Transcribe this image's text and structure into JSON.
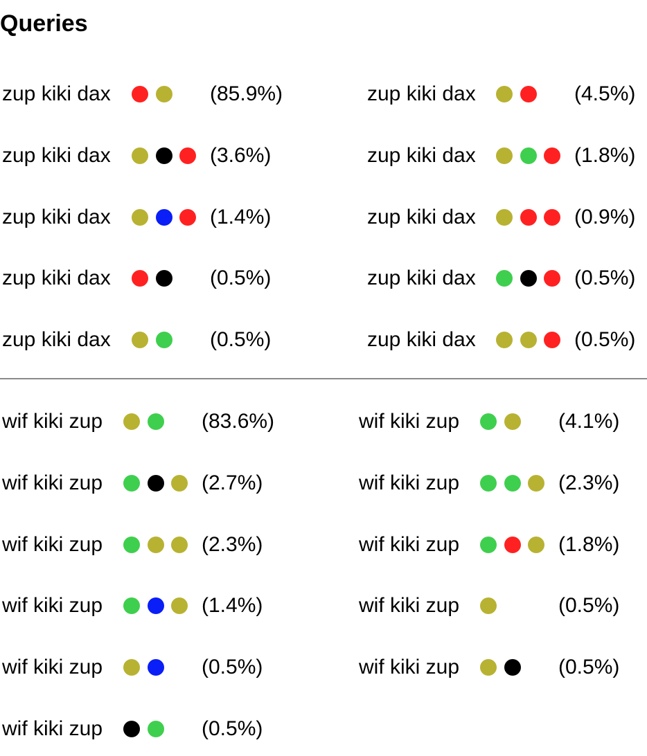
{
  "title": "Queries",
  "colors": {
    "red": "#ff2121",
    "olive": "#b8b232",
    "black": "#000000",
    "green": "#3fcf4e",
    "blue": "#0a1ef7"
  },
  "sections": [
    {
      "name": "zup-kiki-dax",
      "rows": [
        [
          {
            "label": "zup kiki dax",
            "dots": [
              "red",
              "olive"
            ],
            "pct": "(85.9%)"
          },
          {
            "label": "zup kiki dax",
            "dots": [
              "olive",
              "red"
            ],
            "pct": "(4.5%)"
          }
        ],
        [
          {
            "label": "zup kiki dax",
            "dots": [
              "olive",
              "black",
              "red"
            ],
            "pct": "(3.6%)"
          },
          {
            "label": "zup kiki dax",
            "dots": [
              "olive",
              "green",
              "red"
            ],
            "pct": "(1.8%)"
          }
        ],
        [
          {
            "label": "zup kiki dax",
            "dots": [
              "olive",
              "blue",
              "red"
            ],
            "pct": "(1.4%)"
          },
          {
            "label": "zup kiki dax",
            "dots": [
              "olive",
              "red",
              "red"
            ],
            "pct": "(0.9%)"
          }
        ],
        [
          {
            "label": "zup kiki dax",
            "dots": [
              "red",
              "black"
            ],
            "pct": "(0.5%)"
          },
          {
            "label": "zup kiki dax",
            "dots": [
              "green",
              "black",
              "red"
            ],
            "pct": "(0.5%)"
          }
        ],
        [
          {
            "label": "zup kiki dax",
            "dots": [
              "olive",
              "green"
            ],
            "pct": "(0.5%)"
          },
          {
            "label": "zup kiki dax",
            "dots": [
              "olive",
              "olive",
              "red"
            ],
            "pct": "(0.5%)"
          }
        ]
      ]
    },
    {
      "name": "wif-kiki-zup",
      "rows": [
        [
          {
            "label": "wif kiki zup",
            "dots": [
              "olive",
              "green"
            ],
            "pct": "(83.6%)"
          },
          {
            "label": "wif kiki zup",
            "dots": [
              "green",
              "olive"
            ],
            "pct": "(4.1%)"
          }
        ],
        [
          {
            "label": "wif kiki zup",
            "dots": [
              "green",
              "black",
              "olive"
            ],
            "pct": "(2.7%)"
          },
          {
            "label": "wif kiki zup",
            "dots": [
              "green",
              "green",
              "olive"
            ],
            "pct": "(2.3%)"
          }
        ],
        [
          {
            "label": "wif kiki zup",
            "dots": [
              "green",
              "olive",
              "olive"
            ],
            "pct": "(2.3%)"
          },
          {
            "label": "wif kiki zup",
            "dots": [
              "green",
              "red",
              "olive"
            ],
            "pct": "(1.8%)"
          }
        ],
        [
          {
            "label": "wif kiki zup",
            "dots": [
              "green",
              "blue",
              "olive"
            ],
            "pct": "(1.4%)"
          },
          {
            "label": "wif kiki zup",
            "dots": [
              "olive"
            ],
            "pct": "(0.5%)"
          }
        ],
        [
          {
            "label": "wif kiki zup",
            "dots": [
              "olive",
              "blue"
            ],
            "pct": "(0.5%)"
          },
          {
            "label": "wif kiki zup",
            "dots": [
              "olive",
              "black"
            ],
            "pct": "(0.5%)"
          }
        ],
        [
          {
            "label": "wif kiki zup",
            "dots": [
              "black",
              "green"
            ],
            "pct": "(0.5%)"
          }
        ]
      ]
    }
  ]
}
